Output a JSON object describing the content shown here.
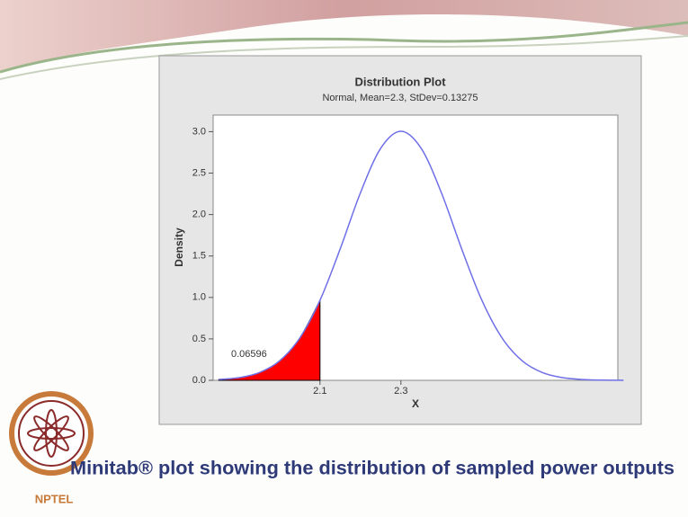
{
  "chart_data": {
    "type": "distribution",
    "title": "Distribution Plot",
    "subtitle": "Normal, Mean=2.3, StDev=0.13275",
    "x_label": "X",
    "y_label": "Density",
    "x": [
      1.85,
      1.9,
      1.95,
      2.0,
      2.05,
      2.1,
      2.15,
      2.2,
      2.25,
      2.3,
      2.35,
      2.4,
      2.45,
      2.5,
      2.55,
      2.6,
      2.65,
      2.7,
      2.75,
      2.8,
      2.85
    ],
    "values": [
      0.0096,
      0.032,
      0.093,
      0.234,
      0.51,
      0.966,
      1.587,
      2.263,
      2.799,
      3.005,
      2.799,
      2.263,
      1.587,
      0.966,
      0.51,
      0.234,
      0.093,
      0.032,
      0.0096,
      0.0025,
      0.0006
    ],
    "color": "#6f6fe8",
    "shaded": {
      "x": [
        1.85,
        1.9,
        1.95,
        2.0,
        2.05,
        2.1
      ],
      "values": [
        0.0096,
        0.032,
        0.093,
        0.234,
        0.51,
        0.966
      ],
      "color": "#ff0000"
    },
    "area_label": 0.06596,
    "xlim": [
      1.836,
      2.836
    ],
    "ylim": [
      0,
      3.2
    ],
    "xticks": [
      2.1,
      2.3
    ],
    "yticks": [
      {
        "value": 0,
        "label": "0.0"
      },
      0.5,
      {
        "value": 1,
        "label": "1.0"
      },
      1.5,
      {
        "value": 2,
        "label": "2.0"
      },
      2.5,
      {
        "value": 3,
        "label": "3.0"
      }
    ]
  },
  "slide": {
    "caption": "Minitab® plot showing the distribution of sampled power outputs",
    "logo_text": "NPTEL"
  }
}
